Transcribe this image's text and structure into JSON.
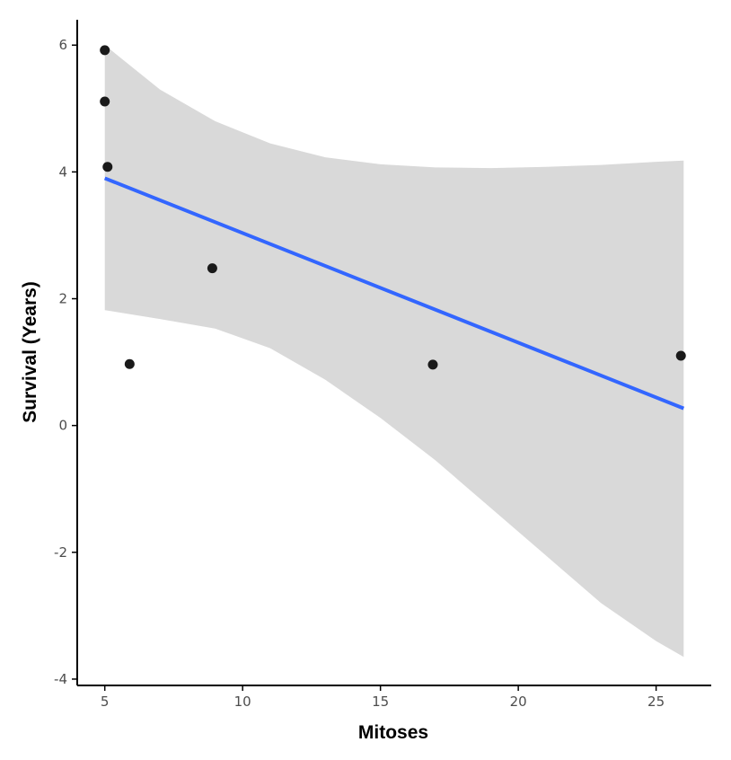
{
  "chart_data": {
    "type": "scatter",
    "xlabel": "Mitoses",
    "ylabel": "Survival (Years)",
    "xlim": [
      4.0,
      27.0
    ],
    "ylim": [
      -4.1,
      6.4
    ],
    "x_ticks": [
      5,
      10,
      15,
      20,
      25
    ],
    "y_ticks": [
      -4,
      -2,
      0,
      2,
      4,
      6
    ],
    "grid": false,
    "legend": "none",
    "points": [
      {
        "x": 5.0,
        "y": 5.92
      },
      {
        "x": 5.0,
        "y": 5.11
      },
      {
        "x": 5.1,
        "y": 4.08
      },
      {
        "x": 5.9,
        "y": 0.97
      },
      {
        "x": 8.9,
        "y": 2.48
      },
      {
        "x": 16.9,
        "y": 0.96
      },
      {
        "x": 25.9,
        "y": 1.1
      }
    ],
    "fit_line": {
      "x": [
        5.0,
        26.0
      ],
      "y": [
        3.9,
        0.27
      ]
    },
    "confidence_band": {
      "x": [
        5.0,
        7.0,
        9.0,
        11.0,
        13.0,
        15.0,
        17.0,
        19.0,
        21.0,
        23.0,
        25.0,
        26.0
      ],
      "upper": [
        6.0,
        5.3,
        4.8,
        4.45,
        4.23,
        4.12,
        4.07,
        4.06,
        4.08,
        4.11,
        4.16,
        4.18
      ],
      "lower": [
        1.82,
        1.68,
        1.53,
        1.22,
        0.72,
        0.12,
        -0.55,
        -1.3,
        -2.05,
        -2.8,
        -3.4,
        -3.65
      ]
    },
    "colors": {
      "point": "#1a1a1a",
      "line": "#3366ff",
      "band": "#d9d9d9",
      "axis": "#000000"
    }
  }
}
